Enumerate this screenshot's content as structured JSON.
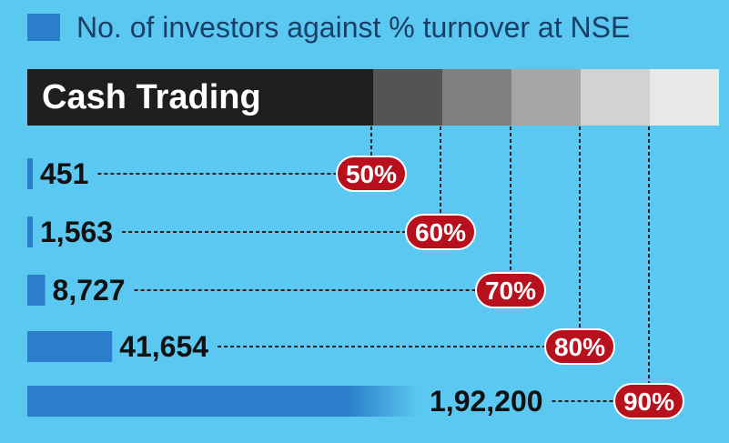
{
  "legend": {
    "label": "No. of investors against % turnover at NSE"
  },
  "section": {
    "label": "Cash Trading"
  },
  "colors": {
    "background": "#5bc8f2",
    "bar": "#2b7fca",
    "badge": "#b8101c",
    "dark_bar": "#1f1f1f",
    "text": "#183f66",
    "shades": [
      "#545454",
      "#808080",
      "#a6a6a6",
      "#d2d2d2",
      "#e8e8e8"
    ]
  },
  "chart_data": {
    "type": "bar",
    "orientation": "horizontal",
    "title": "No. of investors against % turnover at NSE",
    "categories": [
      "50%",
      "60%",
      "70%",
      "80%",
      "90%"
    ],
    "values": [
      451,
      1563,
      8727,
      41654,
      192200
    ],
    "value_labels": [
      "451",
      "1,563",
      "8,727",
      "41,654",
      "1,92,200"
    ],
    "series": [
      {
        "name": "No. of investors against % turnover at NSE",
        "values": [
          451,
          1563,
          8727,
          41654,
          192200
        ]
      }
    ],
    "xlabel": "",
    "ylabel": "",
    "grid": false,
    "legend_position": "top-left"
  }
}
